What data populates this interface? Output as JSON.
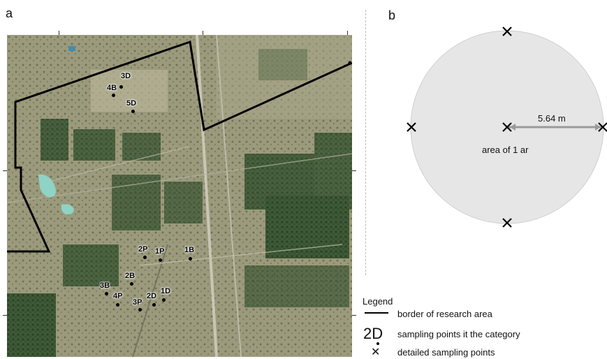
{
  "panels": {
    "a": "a",
    "b": "b"
  },
  "map": {
    "sampling_points": [
      {
        "label": "3D"
      },
      {
        "label": "4B"
      },
      {
        "label": "5D"
      },
      {
        "label": "2P"
      },
      {
        "label": "1P"
      },
      {
        "label": "1B"
      },
      {
        "label": "2B"
      },
      {
        "label": "3B"
      },
      {
        "label": "4P"
      },
      {
        "label": "3P"
      },
      {
        "label": "2D"
      },
      {
        "label": "1D"
      }
    ]
  },
  "diagram": {
    "radius_label": "5.64 m",
    "area_label": "area of 1 ar",
    "circle_fill": "#e6e6e6",
    "circle_stroke": "#cfcfcf",
    "radius_color": "#9a9a9a"
  },
  "legend": {
    "title": "Legend",
    "items": [
      {
        "symbol": "line",
        "text": "border of research area"
      },
      {
        "symbol": "2D",
        "text": "sampling points it the category"
      },
      {
        "symbol": "cross-icon",
        "glyph": "✕",
        "text": "detailed sampling points"
      }
    ]
  }
}
